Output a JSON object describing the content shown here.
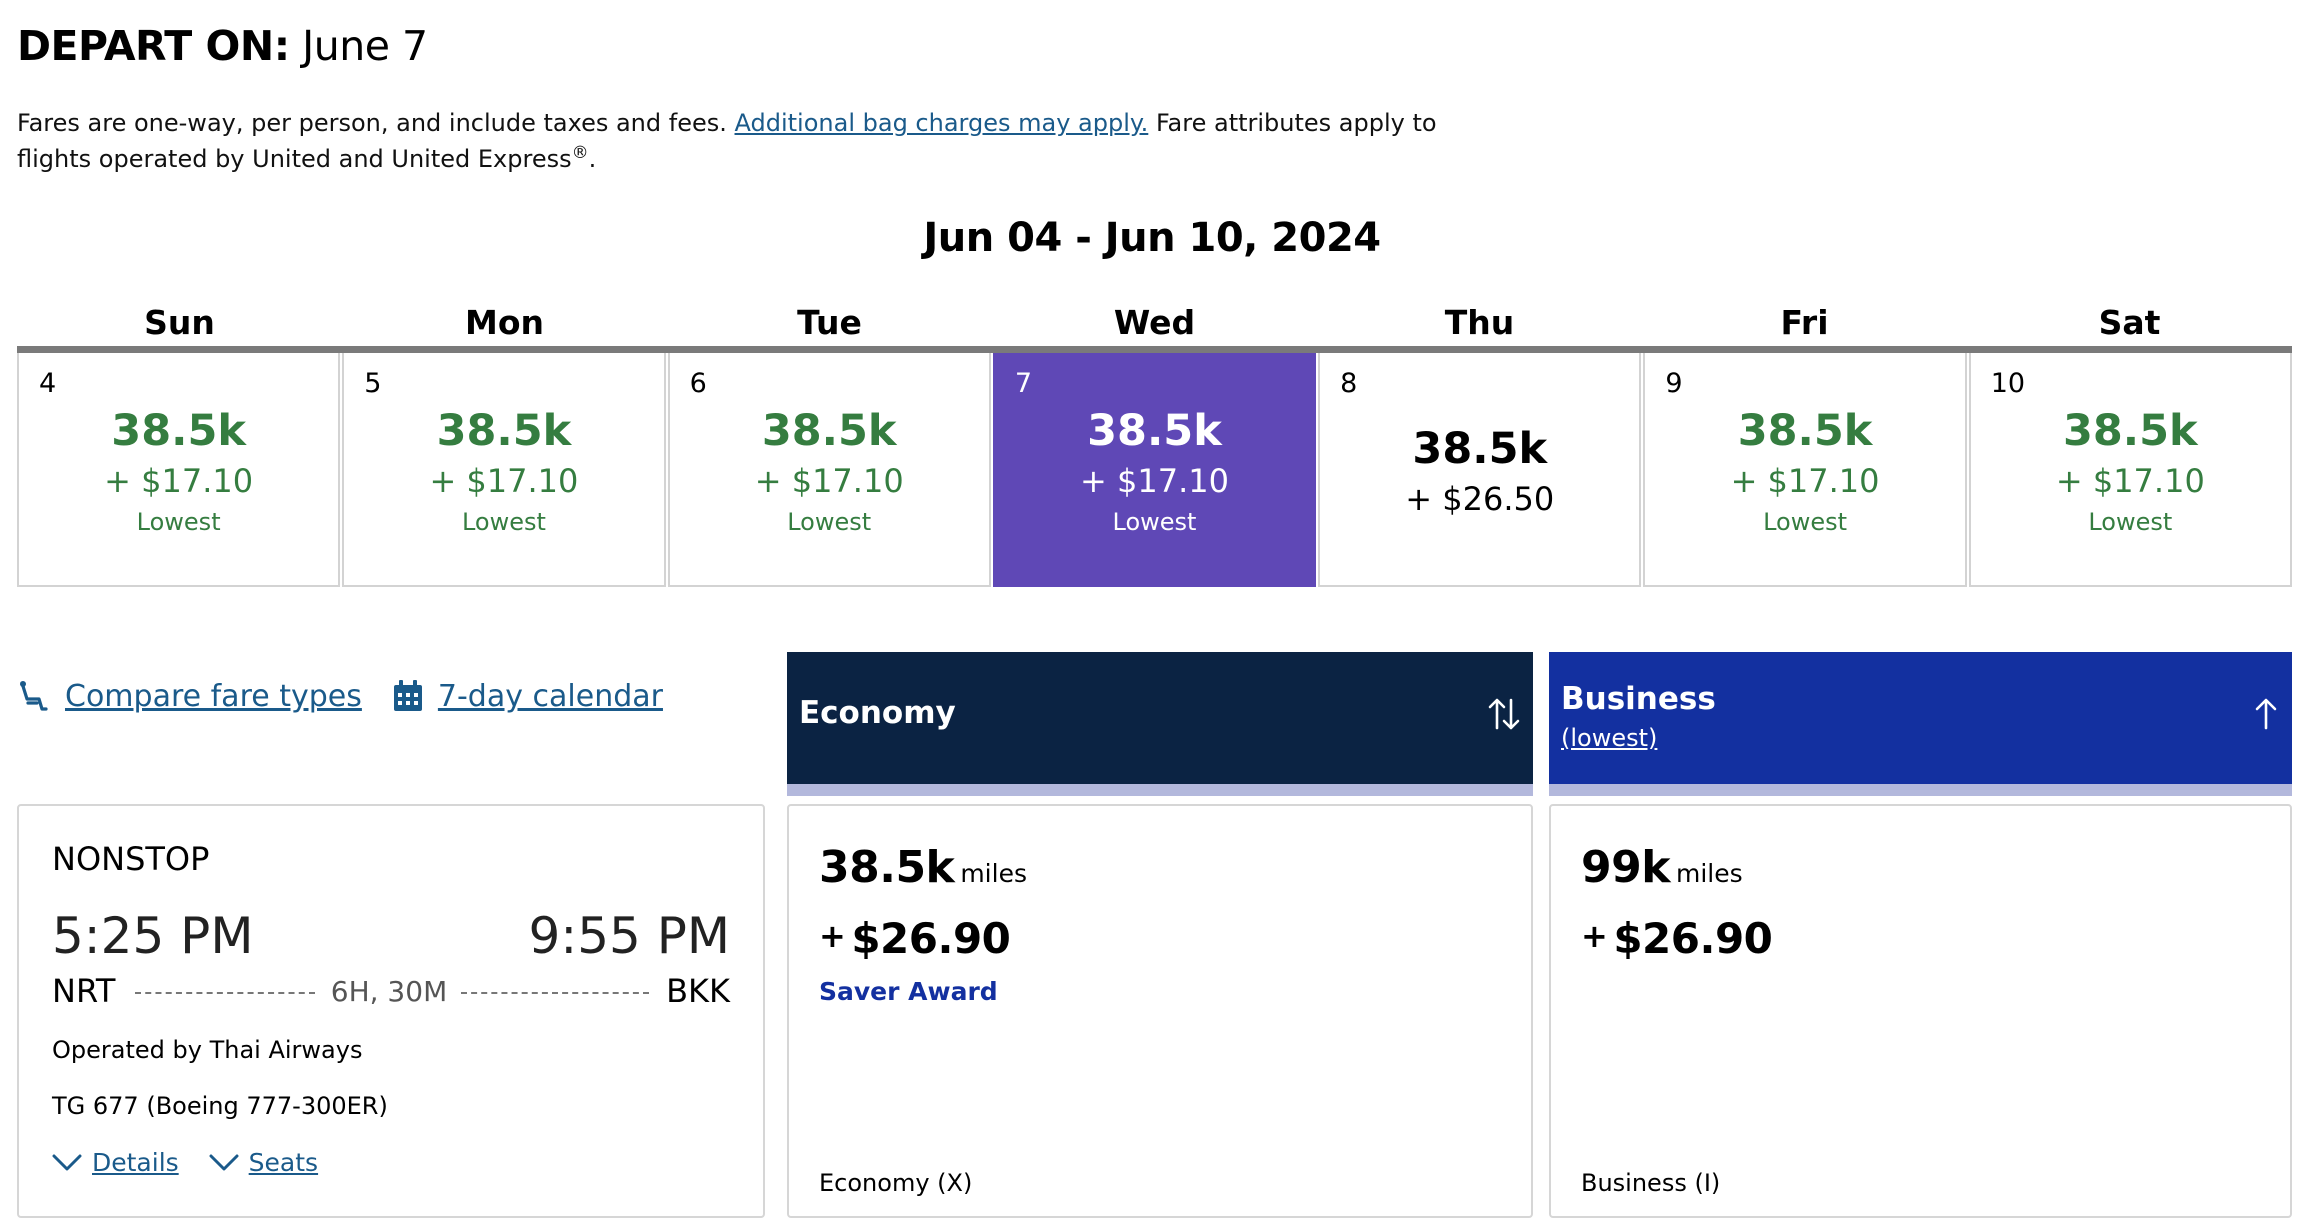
{
  "header": {
    "depart_label": "DEPART ON:",
    "depart_date": "June 7",
    "note_pre": "Fares are one-way, per person, and include taxes and fees.",
    "note_link": "Additional bag charges may apply.",
    "note_post": "Fare attributes apply to flights operated by United and United Express",
    "note_registered": "®",
    "note_end": "."
  },
  "calendar": {
    "range_title": "Jun 04 - Jun 10, 2024",
    "weekdays": [
      "Sun",
      "Mon",
      "Tue",
      "Wed",
      "Thu",
      "Fri",
      "Sat"
    ],
    "days": [
      {
        "day": "4",
        "miles": "38.5k",
        "tax": "+ $17.10",
        "note": "Lowest"
      },
      {
        "day": "5",
        "miles": "38.5k",
        "tax": "+ $17.10",
        "note": "Lowest"
      },
      {
        "day": "6",
        "miles": "38.5k",
        "tax": "+ $17.10",
        "note": "Lowest"
      },
      {
        "day": "7",
        "miles": "38.5k",
        "tax": "+ $17.10",
        "note": "Lowest"
      },
      {
        "day": "8",
        "miles": "38.5k",
        "tax": "+ $26.50",
        "note": ""
      },
      {
        "day": "9",
        "miles": "38.5k",
        "tax": "+ $17.10",
        "note": "Lowest"
      },
      {
        "day": "10",
        "miles": "38.5k",
        "tax": "+ $17.10",
        "note": "Lowest"
      }
    ],
    "selected_color": "#5f48b6",
    "lowest_color": "#357d40"
  },
  "links": {
    "compare": "Compare fare types",
    "calendar7": "7-day calendar"
  },
  "flight": {
    "stops": "NONSTOP",
    "depart_time": "5:25 PM",
    "arrive_time": "9:55 PM",
    "origin": "NRT",
    "destination": "BKK",
    "duration": "6H, 30M",
    "operated_by": "Operated by Thai Airways",
    "flight_number": "TG 677 (Boeing 777-300ER)",
    "details_label": "Details",
    "seats_label": "Seats"
  },
  "fares": {
    "economy": {
      "title": "Economy",
      "miles": "38.5k",
      "miles_unit": "miles",
      "plus": "+",
      "tax": "$26.90",
      "award": "Saver Award",
      "fare_class": "Economy (X)",
      "header_color": "#0b2343"
    },
    "business": {
      "title": "Business",
      "sub": "(lowest)",
      "miles": "99k",
      "miles_unit": "miles",
      "plus": "+",
      "tax": "$26.90",
      "fare_class": "Business (I)",
      "header_color": "#1330a0"
    }
  }
}
